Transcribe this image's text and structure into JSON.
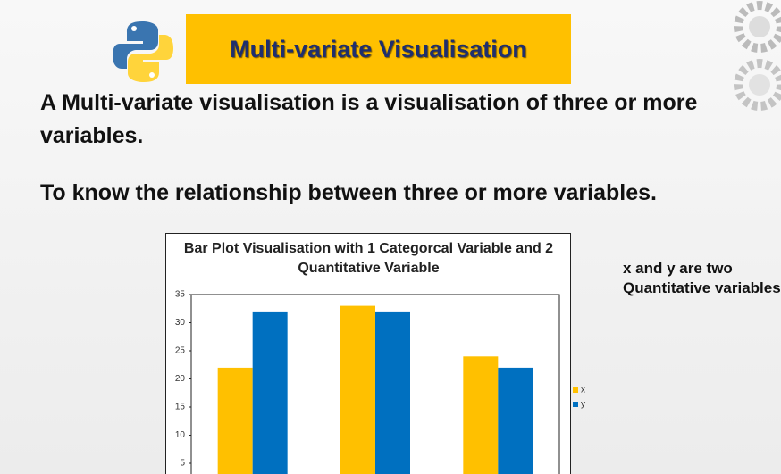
{
  "header": {
    "title": "Multi-variate Visualisation"
  },
  "body": {
    "definition": "A Multi-variate visualisation is a visualisation of three or more variables.",
    "purpose": "To know the relationship between three or more variables."
  },
  "side_note": "x and y are two Quantitative variables",
  "chart_data": {
    "type": "bar",
    "title": "Bar Plot Visualisation with 1 Categorcal Variable and 2 Quantitative Variable",
    "categories": [
      null,
      null,
      null
    ],
    "series": [
      {
        "name": "x",
        "color": "#ffc000",
        "values": [
          22,
          33,
          24
        ]
      },
      {
        "name": "y",
        "color": "#0070c0",
        "values": [
          32,
          32,
          22
        ]
      }
    ],
    "ylim": [
      0,
      35
    ],
    "yticks": [
      5,
      10,
      15,
      20,
      25,
      30,
      35
    ],
    "grid": false,
    "legend": "right"
  }
}
